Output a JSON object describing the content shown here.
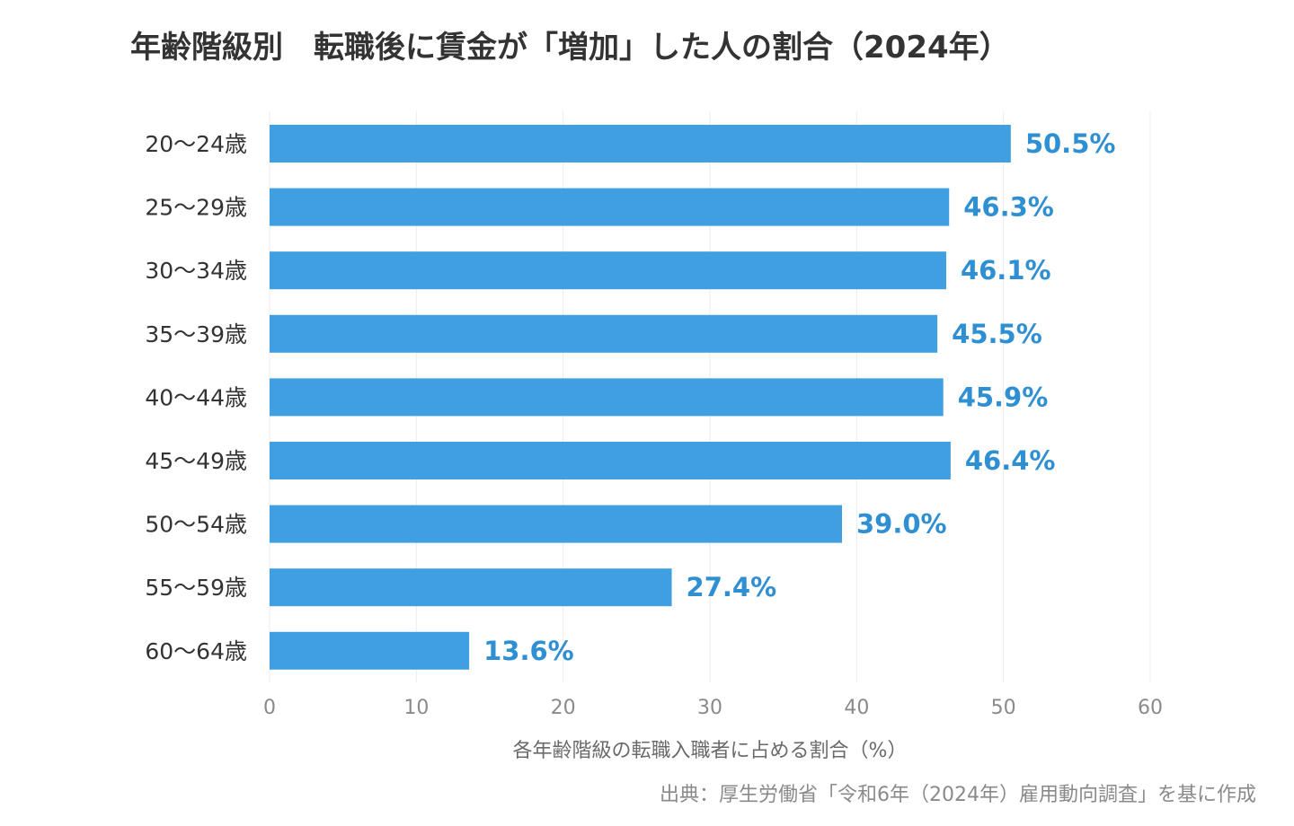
{
  "chart_data": {
    "type": "bar",
    "orientation": "horizontal",
    "title": "年齢階級別　転職後に賃金が「増加」した人の割合（2024年）",
    "xlabel": "各年齢階級の転職入職者に占める割合（%）",
    "ylabel": "",
    "categories": [
      "20〜24歳",
      "25〜29歳",
      "30〜34歳",
      "35〜39歳",
      "40〜44歳",
      "45〜49歳",
      "50〜54歳",
      "55〜59歳",
      "60〜64歳"
    ],
    "values": [
      50.5,
      46.3,
      46.1,
      45.5,
      45.9,
      46.4,
      39.0,
      27.4,
      13.6
    ],
    "value_labels": [
      "50.5%",
      "46.3%",
      "46.1%",
      "45.5%",
      "45.9%",
      "46.4%",
      "39.0%",
      "27.4%",
      "13.6%"
    ],
    "xlim": [
      0,
      60
    ],
    "xticks": [
      0,
      10,
      20,
      30,
      40,
      50,
      60
    ],
    "xtick_labels": [
      "0",
      "10",
      "20",
      "30",
      "40",
      "50",
      "60"
    ],
    "grid": true,
    "legend": "none",
    "source": "出典：厚生労働省「令和6年（2024年）雇用動向調査」を基に作成",
    "colors": {
      "bar": "#3f9fe0",
      "value_label": "#2f8fd3",
      "title": "#333333",
      "grid": "#ececec"
    }
  }
}
